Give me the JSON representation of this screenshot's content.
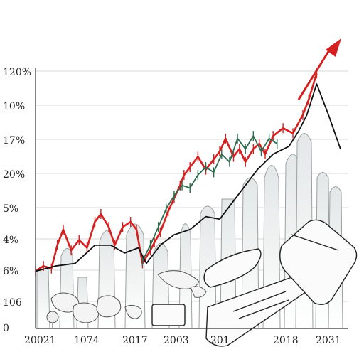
{
  "chart_data": {
    "type": "line",
    "title": "",
    "xlabel": "",
    "ylabel": "",
    "y_tick_labels": [
      "120%",
      "10%",
      "17%",
      "20%",
      "5%",
      "4%",
      "6%",
      "106",
      "0"
    ],
    "x_tick_labels": [
      "20021",
      "1074",
      "2017",
      "2003",
      "201",
      "2018",
      "2031"
    ],
    "grid": true,
    "legend": "none",
    "colors": {
      "red_series": "#d42020",
      "green_series": "#2f6b4f",
      "black_series": "#111111",
      "skyline": "#eef1f1",
      "skyline_stroke": "#9aa0a0",
      "grid": "#d9d9d9"
    },
    "decorations": [
      "world-map-sketch",
      "device-sketch",
      "city-skyline-sketch",
      "trend-arrow"
    ],
    "series": [
      {
        "color_key": "red_series",
        "x": [
          0.0,
          0.4,
          0.8,
          1.1,
          1.4,
          1.8,
          2.2,
          2.6,
          3.0,
          3.3,
          3.7,
          4.0,
          4.4,
          4.8,
          5.1,
          5.4,
          5.8,
          6.0,
          6.3,
          6.7,
          7.0,
          7.3,
          7.5,
          7.8,
          8.2,
          8.6,
          9.0,
          9.3,
          9.6,
          10.0,
          10.3,
          10.6,
          11.0,
          11.3,
          11.6,
          12.0,
          12.5,
          13.0,
          13.5,
          13.8,
          14.2
        ],
        "y": [
          2.2,
          2.4,
          2.3,
          3.2,
          3.8,
          3.0,
          3.4,
          3.1,
          4.1,
          4.4,
          3.9,
          3.2,
          3.9,
          4.1,
          3.8,
          2.5,
          3.0,
          3.3,
          3.7,
          4.5,
          5.0,
          5.5,
          5.9,
          6.2,
          6.6,
          6.1,
          6.5,
          6.8,
          7.3,
          6.6,
          6.9,
          6.4,
          6.9,
          7.1,
          6.7,
          7.4,
          7.7,
          7.5,
          8.2,
          8.8,
          9.8
        ]
      },
      {
        "color_key": "green_series",
        "x": [
          5.4,
          5.8,
          6.2,
          6.6,
          7.0,
          7.4,
          7.8,
          8.2,
          8.6,
          9.0,
          9.4,
          9.8,
          10.2,
          10.6,
          11.0,
          11.4,
          11.8,
          12.2
        ],
        "y": [
          2.6,
          3.2,
          3.9,
          4.6,
          5.1,
          5.5,
          5.4,
          5.9,
          6.2,
          6.0,
          6.7,
          6.4,
          7.3,
          6.9,
          7.4,
          6.8,
          7.3,
          7.1
        ]
      },
      {
        "color_key": "black_series",
        "x": [
          0.0,
          1.0,
          2.0,
          3.0,
          3.8,
          4.5,
          5.2,
          5.6,
          6.3,
          7.0,
          7.8,
          8.6,
          9.3,
          10.0,
          10.6,
          11.2,
          12.0,
          12.8,
          13.3,
          13.7,
          14.2,
          14.8,
          15.4
        ],
        "y": [
          2.2,
          2.4,
          2.5,
          3.2,
          3.2,
          2.9,
          3.1,
          2.5,
          3.2,
          3.6,
          3.8,
          4.3,
          4.2,
          4.9,
          5.5,
          6.1,
          6.7,
          7.0,
          7.6,
          8.2,
          9.4,
          8.2,
          6.9
        ]
      }
    ],
    "xlim": [
      0,
      15.8
    ],
    "ylim": [
      0,
      10
    ]
  }
}
